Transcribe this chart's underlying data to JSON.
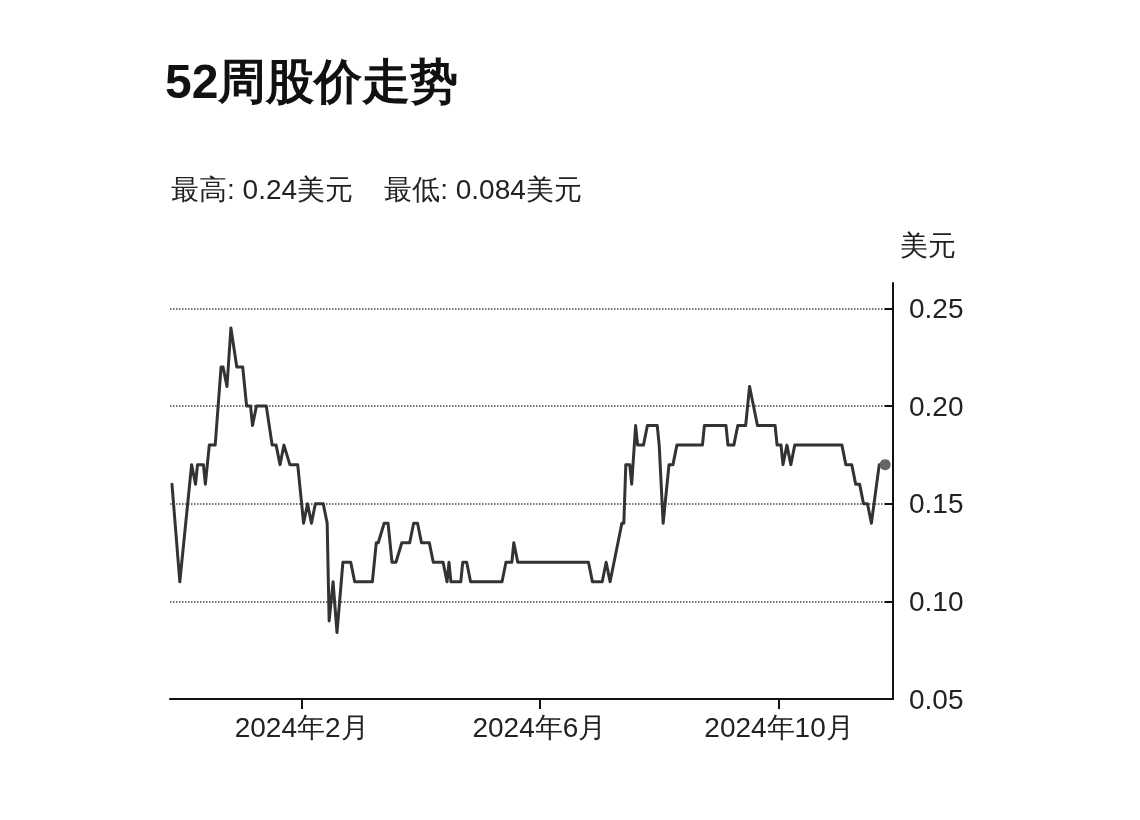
{
  "chart_data": {
    "type": "line",
    "title": "52周股价走势",
    "subtitle": "最高: 0.24美元    最低: 0.084美元",
    "ylabel": "美元",
    "x": [
      "2023-11-27",
      "2023-12-01",
      "2023-12-07",
      "2023-12-09",
      "2023-12-10",
      "2023-12-13",
      "2023-12-14",
      "2023-12-16",
      "2023-12-19",
      "2023-12-22",
      "2023-12-23",
      "2023-12-25",
      "2023-12-27",
      "2023-12-30",
      "2024-01-02",
      "2024-01-04",
      "2024-01-06",
      "2024-01-07",
      "2024-01-09",
      "2024-01-14",
      "2024-01-17",
      "2024-01-19",
      "2024-01-21",
      "2024-01-23",
      "2024-01-26",
      "2024-01-30",
      "2024-02-02",
      "2024-02-04",
      "2024-02-06",
      "2024-02-08",
      "2024-02-12",
      "2024-02-14",
      "2024-02-15",
      "2024-02-17",
      "2024-02-19",
      "2024-02-22",
      "2024-02-26",
      "2024-02-28",
      "2024-03-08",
      "2024-03-10",
      "2024-03-11",
      "2024-03-14",
      "2024-03-16",
      "2024-03-18",
      "2024-03-20",
      "2024-03-23",
      "2024-03-27",
      "2024-03-29",
      "2024-03-31",
      "2024-04-02",
      "2024-04-06",
      "2024-04-08",
      "2024-04-13",
      "2024-04-15",
      "2024-04-16",
      "2024-04-17",
      "2024-04-22",
      "2024-04-23",
      "2024-04-25",
      "2024-04-27",
      "2024-05-13",
      "2024-05-15",
      "2024-05-18",
      "2024-05-19",
      "2024-05-21",
      "2024-06-26",
      "2024-06-28",
      "2024-07-03",
      "2024-07-05",
      "2024-07-07",
      "2024-07-13",
      "2024-07-14",
      "2024-07-15",
      "2024-07-17",
      "2024-07-18",
      "2024-07-20",
      "2024-07-21",
      "2024-07-24",
      "2024-07-26",
      "2024-07-31",
      "2024-08-01",
      "2024-08-03",
      "2024-08-06",
      "2024-08-08",
      "2024-08-10",
      "2024-08-23",
      "2024-08-24",
      "2024-09-04",
      "2024-09-05",
      "2024-09-08",
      "2024-09-10",
      "2024-09-14",
      "2024-09-16",
      "2024-09-18",
      "2024-09-20",
      "2024-09-29",
      "2024-09-30",
      "2024-10-02",
      "2024-10-03",
      "2024-10-05",
      "2024-10-07",
      "2024-10-09",
      "2024-11-02",
      "2024-11-04",
      "2024-11-07",
      "2024-11-09",
      "2024-11-11",
      "2024-11-13",
      "2024-11-15",
      "2024-11-17",
      "2024-11-21",
      "2024-11-24"
    ],
    "series": [
      {
        "color": "#333333",
        "values": [
          0.16,
          0.11,
          0.17,
          0.16,
          0.17,
          0.17,
          0.16,
          0.18,
          0.18,
          0.22,
          0.22,
          0.21,
          0.24,
          0.22,
          0.22,
          0.2,
          0.2,
          0.19,
          0.2,
          0.2,
          0.18,
          0.18,
          0.17,
          0.18,
          0.17,
          0.17,
          0.14,
          0.15,
          0.14,
          0.15,
          0.15,
          0.14,
          0.09,
          0.11,
          0.084,
          0.12,
          0.12,
          0.11,
          0.11,
          0.13,
          0.13,
          0.14,
          0.14,
          0.12,
          0.12,
          0.13,
          0.13,
          0.14,
          0.14,
          0.13,
          0.13,
          0.12,
          0.12,
          0.11,
          0.12,
          0.11,
          0.11,
          0.12,
          0.12,
          0.11,
          0.11,
          0.12,
          0.12,
          0.13,
          0.12,
          0.12,
          0.11,
          0.11,
          0.12,
          0.11,
          0.14,
          0.14,
          0.17,
          0.17,
          0.16,
          0.19,
          0.18,
          0.18,
          0.19,
          0.19,
          0.18,
          0.14,
          0.17,
          0.17,
          0.18,
          0.18,
          0.19,
          0.19,
          0.18,
          0.18,
          0.19,
          0.19,
          0.21,
          0.2,
          0.19,
          0.19,
          0.18,
          0.18,
          0.17,
          0.18,
          0.17,
          0.18,
          0.18,
          0.17,
          0.17,
          0.16,
          0.16,
          0.15,
          0.15,
          0.14,
          0.17,
          0.17
        ]
      }
    ],
    "xlim": [
      "2023-11-26",
      "2024-11-28"
    ],
    "xticks": [
      {
        "value": "2024-02-01",
        "label": "2024年2月"
      },
      {
        "value": "2024-06-01",
        "label": "2024年6月"
      },
      {
        "value": "2024-10-01",
        "label": "2024年10月"
      }
    ],
    "ylim": [
      0.05,
      0.263
    ],
    "yticks": [
      0.05,
      {
        "value": 0.1,
        "label": "0.10"
      },
      0.15,
      {
        "value": 0.2,
        "label": "0.20"
      },
      0.25
    ],
    "grid": "y",
    "line_style": "solid"
  }
}
